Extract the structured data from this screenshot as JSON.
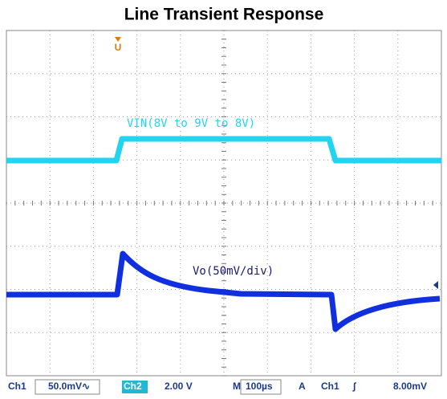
{
  "title": "Line Transient Response",
  "traces": [
    {
      "label": "VIN(8V to 9V to 8V)"
    },
    {
      "label": "Vo(50mV/div)"
    }
  ],
  "marker": "U",
  "status_bar": {
    "ch1": "Ch1",
    "ch1_scale": "50.0mV∿",
    "ch2": "Ch2",
    "ch2_scale": "2.00 V",
    "timebase_label": "M",
    "timebase": "100µs",
    "trigger_mode": "A",
    "trigger_source": "Ch1",
    "trigger_edge": "∫",
    "trigger_level": "8.00mV"
  }
}
